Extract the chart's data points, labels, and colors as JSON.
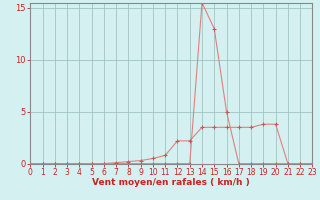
{
  "xlabel": "Vent moyen/en rafales ( km/h )",
  "bg_color": "#d4f0f0",
  "line1_x": [
    0,
    1,
    2,
    3,
    4,
    5,
    6,
    7,
    8,
    9,
    10,
    11,
    12,
    13,
    14,
    15,
    16,
    17,
    18,
    19,
    20,
    21,
    22,
    23
  ],
  "line1_y": [
    0,
    0,
    0,
    0,
    0,
    0,
    0,
    0,
    0,
    0,
    0,
    0,
    0,
    0,
    15.5,
    13,
    5,
    0,
    0,
    0,
    0,
    0,
    0,
    0
  ],
  "line2_x": [
    0,
    1,
    2,
    3,
    4,
    5,
    6,
    7,
    8,
    9,
    10,
    11,
    12,
    13,
    14,
    15,
    16,
    17,
    18,
    19,
    20,
    21,
    22,
    23
  ],
  "line2_y": [
    0,
    0,
    0,
    0,
    0,
    0,
    0,
    0.1,
    0.2,
    0.3,
    0.5,
    0.8,
    2.2,
    2.2,
    3.5,
    3.5,
    3.5,
    3.5,
    3.5,
    3.8,
    3.8,
    0,
    0,
    0
  ],
  "line_color": "#e08080",
  "marker_color": "#cc5555",
  "grid_color": "#99bbbb",
  "spine_color": "#888888",
  "tick_color": "#cc2222",
  "xlabel_color": "#cc2222",
  "xlim": [
    0,
    23
  ],
  "ylim": [
    0,
    15.5
  ],
  "yticks": [
    0,
    5,
    10,
    15
  ],
  "xticks": [
    0,
    1,
    2,
    3,
    4,
    5,
    6,
    7,
    8,
    9,
    10,
    11,
    12,
    13,
    14,
    15,
    16,
    17,
    18,
    19,
    20,
    21,
    22,
    23
  ],
  "xlabel_fontsize": 6.5,
  "tick_fontsize": 5.5
}
